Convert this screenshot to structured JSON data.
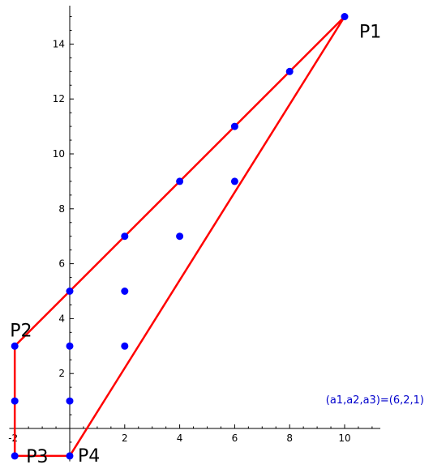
{
  "chart_data": {
    "type": "scatter",
    "xlim": [
      -2.2,
      11.3
    ],
    "ylim": [
      -1.2,
      15.4
    ],
    "x_ticks": [
      -2,
      2,
      4,
      6,
      8,
      10
    ],
    "y_ticks": [
      2,
      4,
      6,
      8,
      10,
      12,
      14
    ],
    "grid": false,
    "points": [
      {
        "x": -2,
        "y": -1
      },
      {
        "x": -2,
        "y": 1
      },
      {
        "x": -2,
        "y": 3
      },
      {
        "x": 0,
        "y": -1
      },
      {
        "x": 0,
        "y": 1
      },
      {
        "x": 0,
        "y": 3
      },
      {
        "x": 0,
        "y": 5
      },
      {
        "x": 2,
        "y": 3
      },
      {
        "x": 2,
        "y": 5
      },
      {
        "x": 2,
        "y": 7
      },
      {
        "x": 4,
        "y": 7
      },
      {
        "x": 4,
        "y": 9
      },
      {
        "x": 6,
        "y": 9
      },
      {
        "x": 6,
        "y": 11
      },
      {
        "x": 8,
        "y": 13
      },
      {
        "x": 10,
        "y": 15
      }
    ],
    "polygon": [
      {
        "x": 10,
        "y": 15
      },
      {
        "x": -2,
        "y": 3
      },
      {
        "x": -2,
        "y": -1
      },
      {
        "x": 0,
        "y": -1
      }
    ],
    "vertex_labels": [
      {
        "text": "P1",
        "x": 10,
        "y": 15
      },
      {
        "text": "P2",
        "x": -2,
        "y": 3
      },
      {
        "text": "P3",
        "x": -2,
        "y": -1
      },
      {
        "text": "P4",
        "x": 0,
        "y": -1
      }
    ],
    "annotation": "(a1,a2,a3)=(6,2,1)",
    "colors": {
      "points": "#0000ff",
      "polygon": "#ff0000",
      "annotation": "#0000cc",
      "axes": "#000000"
    }
  }
}
